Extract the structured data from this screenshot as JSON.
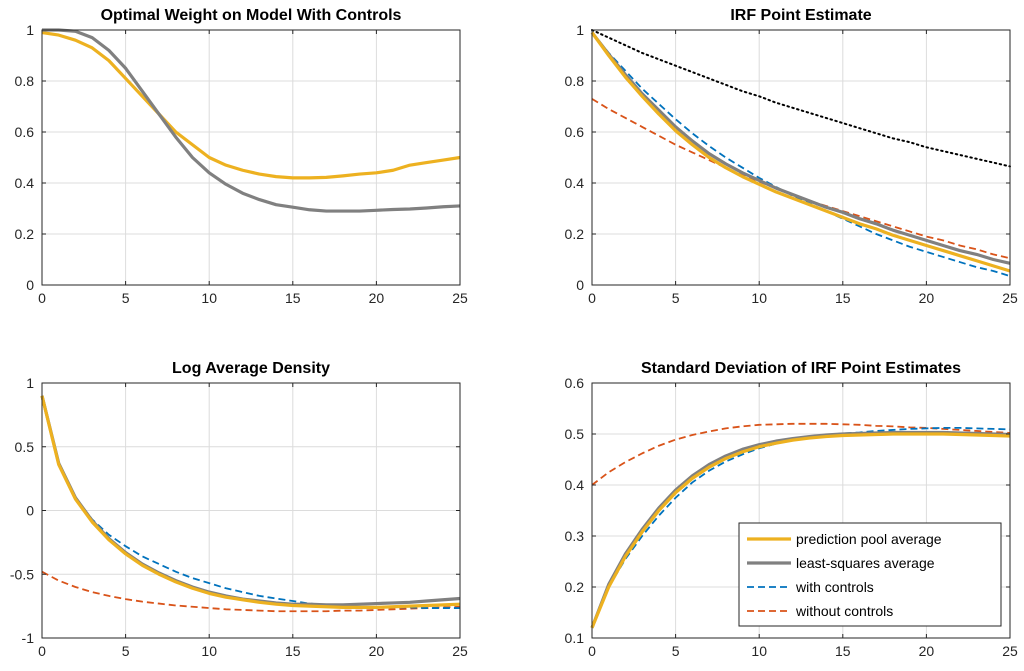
{
  "colors": {
    "prediction_pool": "#EDB120",
    "least_squares": "#808080",
    "with_controls": "#0072BD",
    "without_controls": "#D95319",
    "reference": "#000000"
  },
  "legend": {
    "placement": "lower-right",
    "entries": [
      {
        "label": "prediction pool average",
        "style": "solid",
        "color": "#EDB120"
      },
      {
        "label": "least-squares average",
        "style": "solid",
        "color": "#808080"
      },
      {
        "label": "with controls",
        "style": "dashed",
        "color": "#0072BD"
      },
      {
        "label": "without controls",
        "style": "dashed",
        "color": "#D95319"
      }
    ]
  },
  "chart_data": [
    {
      "type": "line",
      "title": "Optimal Weight on Model With Controls",
      "xlabel": "",
      "ylabel": "",
      "xlim": [
        0,
        25
      ],
      "ylim": [
        0,
        1
      ],
      "xticks": [
        0,
        5,
        10,
        15,
        20,
        25
      ],
      "yticks": [
        0,
        0.2,
        0.4,
        0.6,
        0.8,
        1
      ],
      "ytick_labels": [
        "0",
        "0.2",
        "0.4",
        "0.6",
        "0.8",
        "1"
      ],
      "grid": true,
      "x": [
        0,
        1,
        2,
        3,
        4,
        5,
        6,
        7,
        8,
        9,
        10,
        11,
        12,
        13,
        14,
        15,
        16,
        17,
        18,
        19,
        20,
        21,
        22,
        23,
        24,
        25
      ],
      "series": [
        {
          "key": "prediction_pool",
          "style": "solid",
          "values": [
            0.99,
            0.98,
            0.96,
            0.93,
            0.88,
            0.81,
            0.74,
            0.67,
            0.6,
            0.55,
            0.5,
            0.47,
            0.45,
            0.435,
            0.425,
            0.42,
            0.42,
            0.422,
            0.428,
            0.435,
            0.44,
            0.45,
            0.47,
            0.48,
            0.49,
            0.5
          ]
        },
        {
          "key": "least_squares",
          "style": "solid",
          "values": [
            1.0,
            1.0,
            0.995,
            0.97,
            0.92,
            0.85,
            0.76,
            0.67,
            0.58,
            0.5,
            0.44,
            0.395,
            0.36,
            0.335,
            0.315,
            0.305,
            0.295,
            0.29,
            0.29,
            0.29,
            0.293,
            0.296,
            0.298,
            0.302,
            0.307,
            0.31
          ]
        }
      ]
    },
    {
      "type": "line",
      "title": "IRF Point Estimate",
      "xlabel": "",
      "ylabel": "",
      "xlim": [
        0,
        25
      ],
      "ylim": [
        0,
        1
      ],
      "xticks": [
        0,
        5,
        10,
        15,
        20,
        25
      ],
      "yticks": [
        0,
        0.2,
        0.4,
        0.6,
        0.8,
        1
      ],
      "ytick_labels": [
        "0",
        "0.2",
        "0.4",
        "0.6",
        "0.8",
        "1"
      ],
      "grid": true,
      "x": [
        0,
        1,
        2,
        3,
        4,
        5,
        6,
        7,
        8,
        9,
        10,
        11,
        12,
        13,
        14,
        15,
        16,
        17,
        18,
        19,
        20,
        21,
        22,
        23,
        24,
        25
      ],
      "series": [
        {
          "key": "reference",
          "style": "dotted",
          "values": [
            1.0,
            0.97,
            0.94,
            0.91,
            0.885,
            0.86,
            0.835,
            0.81,
            0.785,
            0.76,
            0.74,
            0.715,
            0.695,
            0.675,
            0.655,
            0.635,
            0.615,
            0.595,
            0.575,
            0.56,
            0.54,
            0.525,
            0.51,
            0.495,
            0.48,
            0.465
          ]
        },
        {
          "key": "without_controls",
          "style": "dashed",
          "values": [
            0.73,
            0.69,
            0.655,
            0.62,
            0.585,
            0.55,
            0.52,
            0.49,
            0.46,
            0.43,
            0.405,
            0.38,
            0.355,
            0.33,
            0.31,
            0.29,
            0.27,
            0.25,
            0.23,
            0.21,
            0.19,
            0.175,
            0.155,
            0.14,
            0.12,
            0.105
          ]
        },
        {
          "key": "with_controls",
          "style": "dashed",
          "values": [
            0.99,
            0.91,
            0.84,
            0.77,
            0.71,
            0.65,
            0.595,
            0.545,
            0.5,
            0.46,
            0.42,
            0.385,
            0.35,
            0.32,
            0.29,
            0.26,
            0.23,
            0.2,
            0.175,
            0.15,
            0.13,
            0.11,
            0.09,
            0.07,
            0.055,
            0.035
          ]
        },
        {
          "key": "least_squares",
          "style": "solid",
          "values": [
            0.99,
            0.905,
            0.825,
            0.75,
            0.685,
            0.62,
            0.565,
            0.515,
            0.475,
            0.44,
            0.41,
            0.38,
            0.355,
            0.33,
            0.305,
            0.285,
            0.26,
            0.24,
            0.215,
            0.195,
            0.175,
            0.155,
            0.135,
            0.12,
            0.1,
            0.085
          ]
        },
        {
          "key": "prediction_pool",
          "style": "solid",
          "values": [
            0.99,
            0.9,
            0.815,
            0.74,
            0.67,
            0.605,
            0.55,
            0.5,
            0.46,
            0.425,
            0.395,
            0.365,
            0.34,
            0.315,
            0.29,
            0.265,
            0.24,
            0.22,
            0.195,
            0.175,
            0.155,
            0.135,
            0.115,
            0.095,
            0.075,
            0.055
          ]
        }
      ]
    },
    {
      "type": "line",
      "title": "Log Average Density",
      "xlabel": "",
      "ylabel": "",
      "xlim": [
        0,
        25
      ],
      "ylim": [
        -1,
        1
      ],
      "xticks": [
        0,
        5,
        10,
        15,
        20,
        25
      ],
      "yticks": [
        -1,
        -0.5,
        0,
        0.5,
        1
      ],
      "ytick_labels": [
        "-1",
        "-0.5",
        "0",
        "0.5",
        "1"
      ],
      "grid": true,
      "x": [
        0,
        1,
        2,
        3,
        4,
        5,
        6,
        7,
        8,
        9,
        10,
        11,
        12,
        13,
        14,
        15,
        16,
        17,
        18,
        19,
        20,
        21,
        22,
        23,
        24,
        25
      ],
      "series": [
        {
          "key": "without_controls",
          "style": "dashed",
          "values": [
            -0.48,
            -0.55,
            -0.6,
            -0.64,
            -0.67,
            -0.695,
            -0.715,
            -0.73,
            -0.745,
            -0.755,
            -0.765,
            -0.775,
            -0.78,
            -0.785,
            -0.79,
            -0.79,
            -0.79,
            -0.79,
            -0.785,
            -0.785,
            -0.78,
            -0.775,
            -0.77,
            -0.765,
            -0.76,
            -0.755
          ]
        },
        {
          "key": "with_controls",
          "style": "dashed",
          "values": [
            0.9,
            0.37,
            0.1,
            -0.07,
            -0.19,
            -0.28,
            -0.36,
            -0.42,
            -0.48,
            -0.53,
            -0.57,
            -0.61,
            -0.64,
            -0.67,
            -0.69,
            -0.71,
            -0.73,
            -0.74,
            -0.75,
            -0.755,
            -0.76,
            -0.76,
            -0.76,
            -0.765,
            -0.765,
            -0.765
          ]
        },
        {
          "key": "least_squares",
          "style": "solid",
          "values": [
            0.9,
            0.37,
            0.1,
            -0.08,
            -0.22,
            -0.33,
            -0.42,
            -0.49,
            -0.55,
            -0.6,
            -0.64,
            -0.67,
            -0.695,
            -0.71,
            -0.725,
            -0.735,
            -0.735,
            -0.74,
            -0.74,
            -0.735,
            -0.73,
            -0.725,
            -0.72,
            -0.71,
            -0.7,
            -0.69
          ]
        },
        {
          "key": "prediction_pool",
          "style": "solid",
          "values": [
            0.9,
            0.36,
            0.09,
            -0.09,
            -0.23,
            -0.34,
            -0.43,
            -0.5,
            -0.56,
            -0.61,
            -0.65,
            -0.68,
            -0.7,
            -0.72,
            -0.735,
            -0.745,
            -0.75,
            -0.755,
            -0.76,
            -0.76,
            -0.76,
            -0.755,
            -0.75,
            -0.745,
            -0.74,
            -0.735
          ]
        }
      ]
    },
    {
      "type": "line",
      "title": "Standard Deviation of IRF Point Estimates",
      "xlabel": "",
      "ylabel": "",
      "xlim": [
        0,
        25
      ],
      "ylim": [
        0.1,
        0.6
      ],
      "xticks": [
        0,
        5,
        10,
        15,
        20,
        25
      ],
      "yticks": [
        0.1,
        0.2,
        0.3,
        0.4,
        0.5,
        0.6
      ],
      "ytick_labels": [
        "0.1",
        "0.2",
        "0.3",
        "0.4",
        "0.5",
        "0.6"
      ],
      "grid": true,
      "legend": true,
      "x": [
        0,
        1,
        2,
        3,
        4,
        5,
        6,
        7,
        8,
        9,
        10,
        11,
        12,
        13,
        14,
        15,
        16,
        17,
        18,
        19,
        20,
        21,
        22,
        23,
        24,
        25
      ],
      "series": [
        {
          "key": "without_controls",
          "style": "dashed",
          "values": [
            0.4,
            0.425,
            0.445,
            0.462,
            0.477,
            0.489,
            0.498,
            0.505,
            0.511,
            0.515,
            0.518,
            0.519,
            0.52,
            0.52,
            0.52,
            0.519,
            0.518,
            0.516,
            0.515,
            0.513,
            0.512,
            0.51,
            0.508,
            0.506,
            0.504,
            0.502
          ]
        },
        {
          "key": "with_controls",
          "style": "dashed",
          "values": [
            0.12,
            0.2,
            0.255,
            0.3,
            0.34,
            0.375,
            0.405,
            0.428,
            0.446,
            0.46,
            0.472,
            0.481,
            0.488,
            0.494,
            0.498,
            0.501,
            0.503,
            0.506,
            0.508,
            0.51,
            0.511,
            0.512,
            0.512,
            0.511,
            0.51,
            0.509
          ]
        },
        {
          "key": "least_squares",
          "style": "solid",
          "values": [
            0.12,
            0.205,
            0.265,
            0.313,
            0.355,
            0.39,
            0.418,
            0.44,
            0.457,
            0.47,
            0.479,
            0.486,
            0.491,
            0.495,
            0.498,
            0.5,
            0.501,
            0.502,
            0.503,
            0.503,
            0.503,
            0.503,
            0.502,
            0.501,
            0.5,
            0.499
          ]
        },
        {
          "key": "prediction_pool",
          "style": "solid",
          "values": [
            0.12,
            0.2,
            0.26,
            0.308,
            0.35,
            0.385,
            0.413,
            0.435,
            0.452,
            0.465,
            0.475,
            0.482,
            0.488,
            0.492,
            0.495,
            0.497,
            0.498,
            0.499,
            0.5,
            0.5,
            0.5,
            0.5,
            0.499,
            0.498,
            0.497,
            0.496
          ]
        }
      ]
    }
  ]
}
